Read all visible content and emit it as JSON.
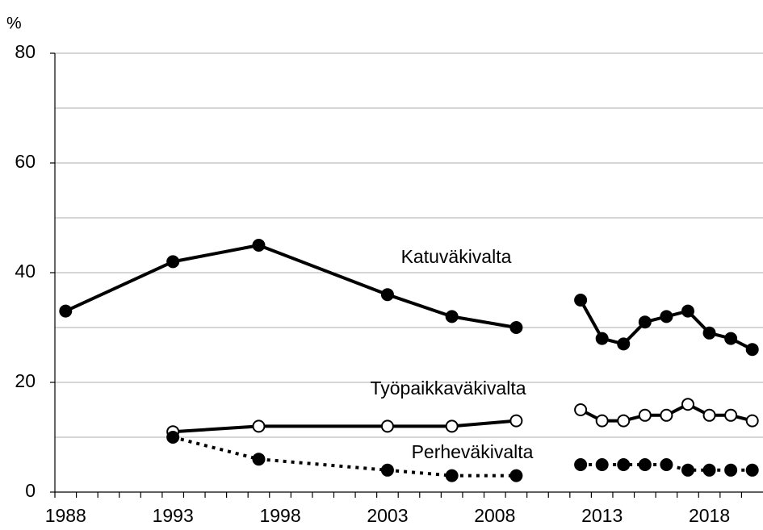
{
  "chart_data": {
    "type": "line",
    "y_unit": "%",
    "x": [
      1988,
      1993,
      1997,
      2003,
      2006,
      2009,
      2011,
      2012,
      2013,
      2014,
      2015,
      2016,
      2017,
      2018,
      2019,
      2020
    ],
    "series": [
      {
        "name": "Katuväkivalta",
        "color": "#000000",
        "marker": "filled",
        "dashed": false,
        "values": [
          33,
          42,
          45,
          36,
          32,
          30,
          null,
          35,
          28,
          27,
          31,
          32,
          33,
          29,
          28,
          26
        ]
      },
      {
        "name": "Työpaikkaväkivalta",
        "color": "#000000",
        "marker": "open",
        "dashed": false,
        "values": [
          null,
          11,
          12,
          12,
          12,
          13,
          null,
          15,
          13,
          13,
          14,
          14,
          16,
          14,
          14,
          13
        ]
      },
      {
        "name": "Perheväkivalta",
        "color": "#000000",
        "marker": "filled",
        "dashed": true,
        "values": [
          null,
          10,
          6,
          4,
          3,
          3,
          null,
          5,
          5,
          5,
          5,
          5,
          4,
          4,
          4,
          4
        ]
      }
    ],
    "xlim": [
      1987.5,
      2020.5
    ],
    "xticks": [
      1988,
      1993,
      1998,
      2003,
      2008,
      2013,
      2018
    ],
    "xminorticks": [
      1987.5,
      1988.5,
      1989.5,
      1990.5,
      1991.5,
      1992.5,
      1993.5,
      1994.5,
      1995.5,
      1996.5,
      1997.5,
      1998.5,
      1999.5,
      2000.5,
      2001.5,
      2002.5,
      2003.5,
      2004.5,
      2005.5,
      2006.5,
      2007.5,
      2008.5,
      2009.5,
      2010.5,
      2011.5,
      2012.5,
      2013.5,
      2014.5,
      2015.5,
      2016.5,
      2017.5,
      2018.5,
      2019.5
    ],
    "ylim": [
      0,
      80
    ],
    "yticks": [
      0,
      20,
      40,
      60,
      80
    ],
    "ygrid": [
      10,
      20,
      30,
      40,
      50,
      60,
      70,
      80
    ]
  }
}
